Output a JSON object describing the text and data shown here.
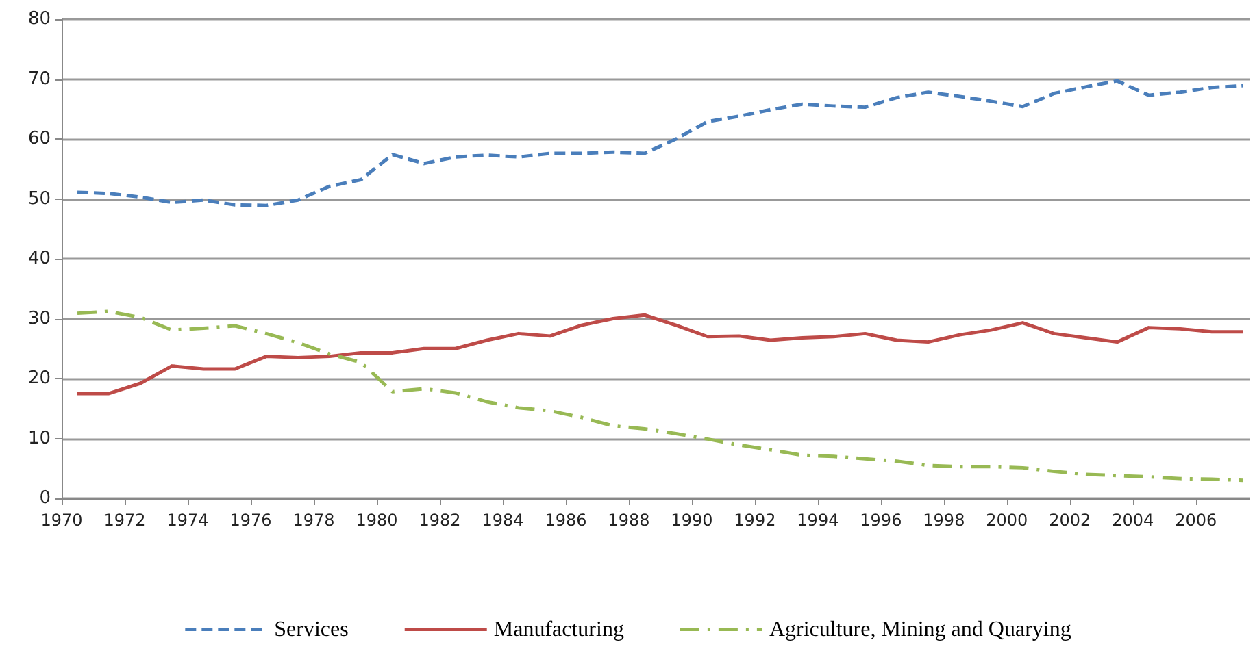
{
  "chart_data": {
    "type": "line",
    "x": [
      1970.5,
      1971.5,
      1972.5,
      1973.5,
      1974.5,
      1975.5,
      1976.5,
      1977.5,
      1978.5,
      1979.5,
      1980.5,
      1981.5,
      1982.5,
      1983.5,
      1984.5,
      1985.5,
      1986.5,
      1987.5,
      1988.5,
      1989.5,
      1990.5,
      1991.5,
      1992.5,
      1993.5,
      1994.5,
      1995.5,
      1996.5,
      1997.5,
      1998.5,
      1999.5,
      2000.5,
      2001.5,
      2002.5,
      2003.5,
      2004.5,
      2005.5,
      2006.5,
      2007.5
    ],
    "series": [
      {
        "name": "Services",
        "color": "#4a7ebb",
        "line_style": "dashed",
        "values": [
          51.1,
          50.9,
          50.3,
          49.4,
          49.8,
          49.0,
          48.9,
          49.8,
          52.1,
          53.2,
          57.4,
          55.9,
          57.0,
          57.3,
          57.0,
          57.6,
          57.6,
          57.8,
          57.6,
          60.0,
          62.9,
          63.8,
          64.9,
          65.8,
          65.5,
          65.3,
          66.9,
          67.8,
          67.1,
          66.3,
          65.4,
          67.6,
          68.7,
          69.7,
          67.3,
          67.8,
          68.6,
          68.9
        ]
      },
      {
        "name": "Manufacturing",
        "color": "#be4b48",
        "line_style": "solid",
        "values": [
          17.5,
          17.5,
          19.2,
          22.1,
          21.6,
          21.6,
          23.7,
          23.5,
          23.7,
          24.3,
          24.3,
          25.0,
          25.0,
          26.4,
          27.5,
          27.1,
          28.9,
          30.0,
          30.6,
          28.9,
          27.0,
          27.1,
          26.4,
          26.8,
          27.0,
          27.5,
          26.4,
          26.1,
          27.3,
          28.1,
          29.3,
          27.5,
          26.8,
          26.1,
          28.5,
          28.3,
          27.8,
          27.8
        ]
      },
      {
        "name": "Agriculture, Mining and Quarying",
        "color": "#98b954",
        "line_style": "dashdot",
        "values": [
          30.9,
          31.2,
          30.2,
          28.1,
          28.4,
          28.8,
          27.5,
          26.0,
          24.1,
          22.7,
          17.8,
          18.3,
          17.6,
          16.1,
          15.1,
          14.6,
          13.5,
          12.1,
          11.6,
          10.8,
          9.9,
          8.9,
          8.1,
          7.2,
          7.0,
          6.6,
          6.2,
          5.5,
          5.3,
          5.3,
          5.1,
          4.5,
          4.0,
          3.8,
          3.6,
          3.3,
          3.2,
          3.0
        ]
      }
    ],
    "xlim": [
      1970,
      2007.7
    ],
    "xticks": [
      1970,
      1972,
      1974,
      1976,
      1978,
      1980,
      1982,
      1984,
      1986,
      1988,
      1990,
      1992,
      1994,
      1996,
      1998,
      2000,
      2002,
      2004,
      2006
    ],
    "ylim": [
      0,
      80
    ],
    "yticks": [
      0,
      10,
      20,
      30,
      40,
      50,
      60,
      70,
      80
    ],
    "grid": "y",
    "legend": "bottom",
    "marker": "none"
  }
}
